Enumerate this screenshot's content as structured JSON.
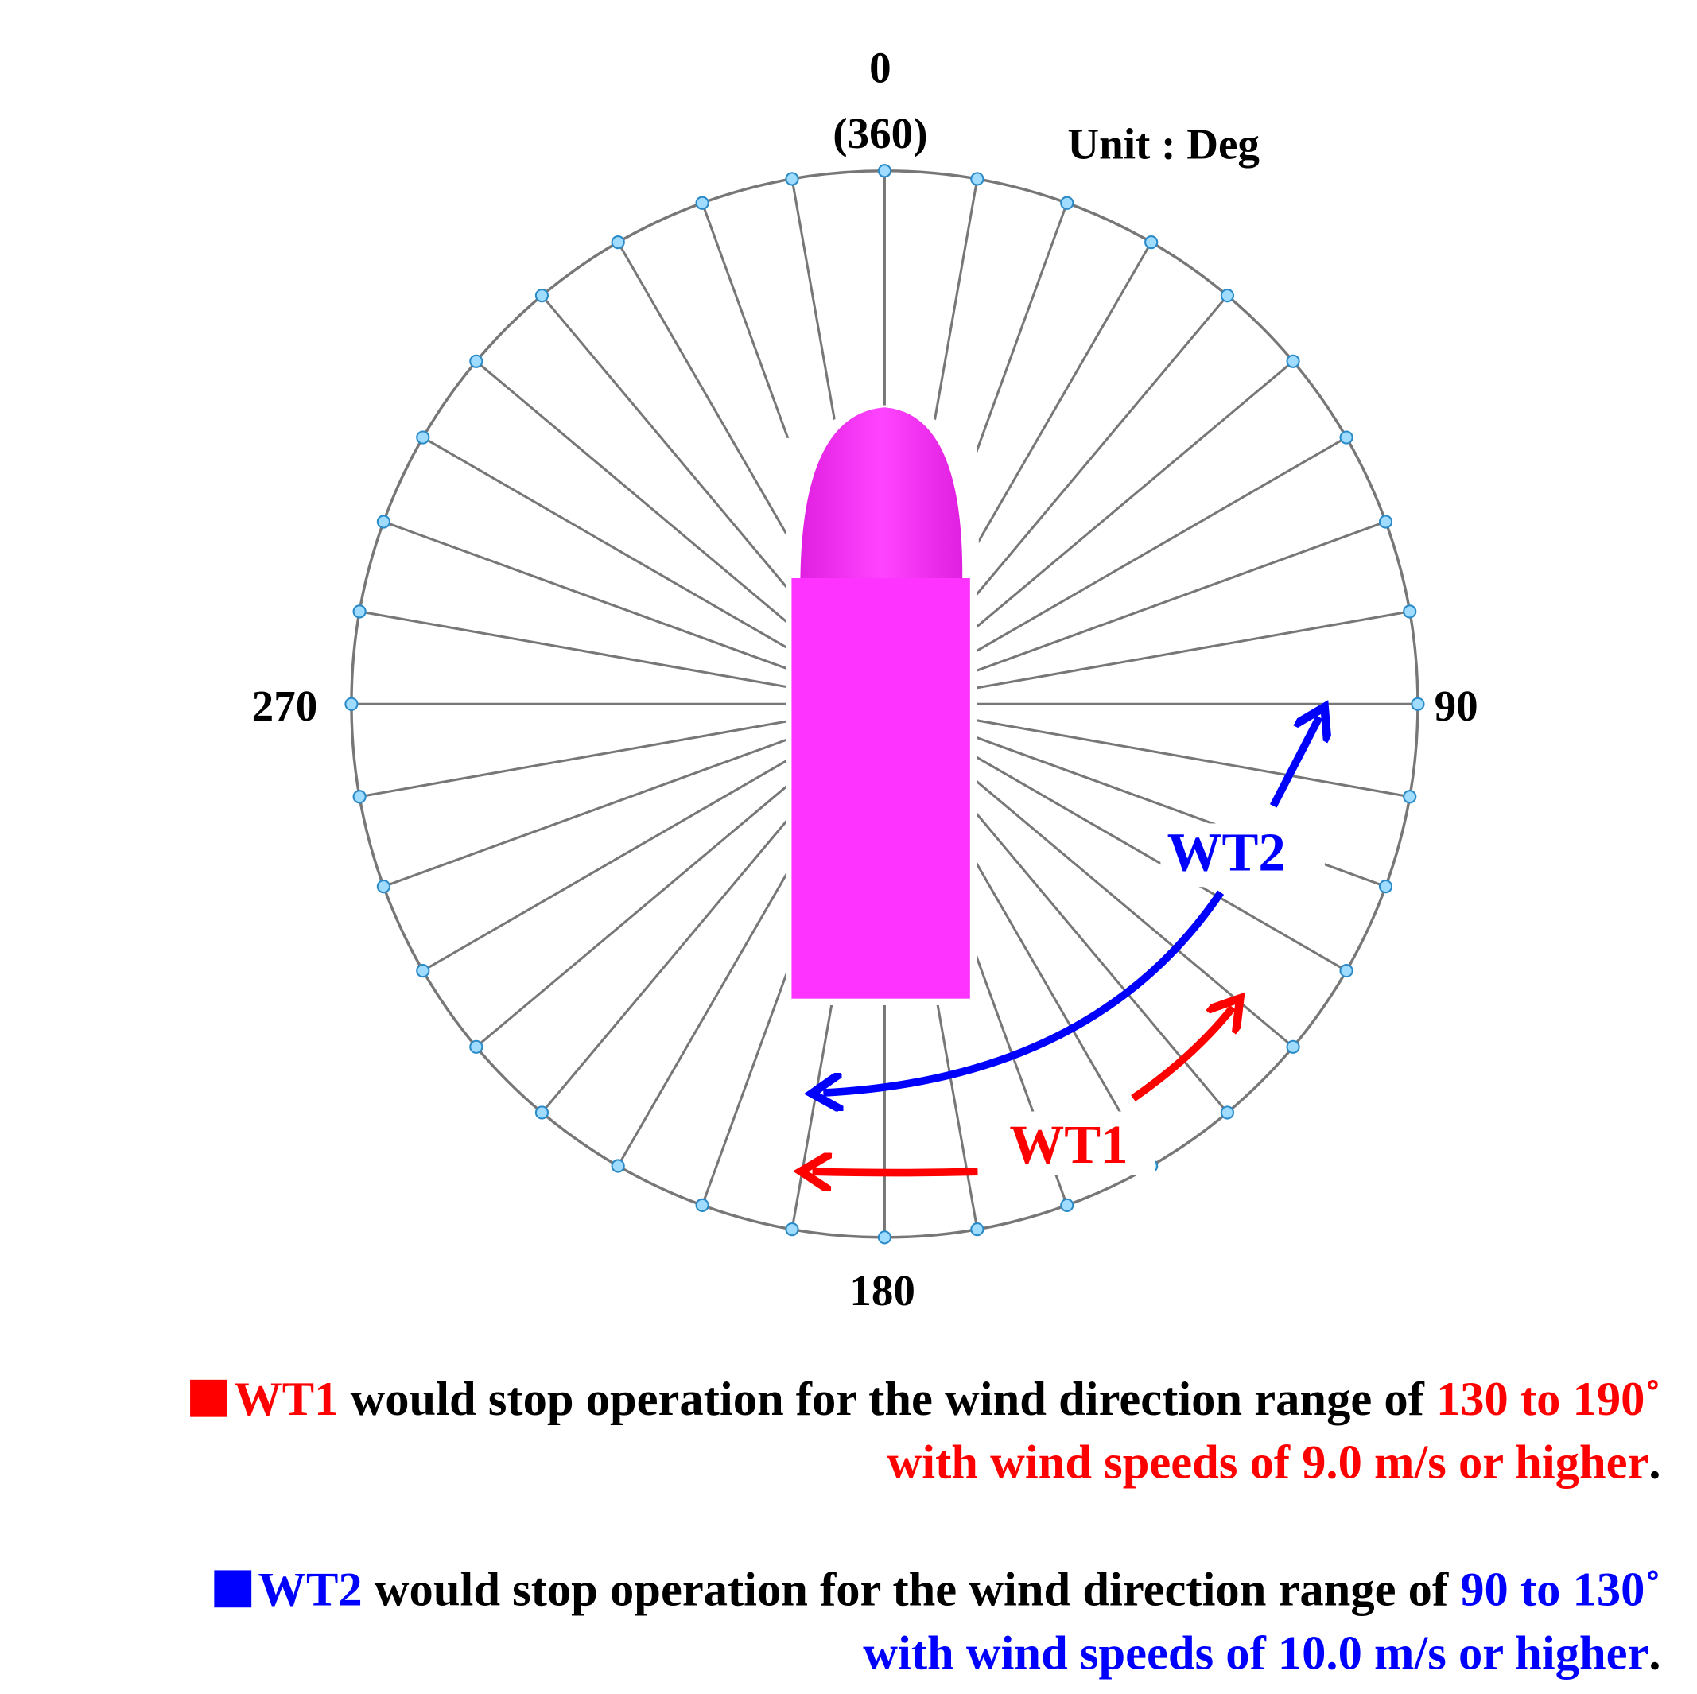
{
  "labels": {
    "north": "0",
    "north_alt": "(360)",
    "unit": "Unit : Deg",
    "west": "270",
    "east": "90",
    "south": "180"
  },
  "arrows": {
    "wt1": "WT1",
    "wt2": "WT2"
  },
  "notes": [
    {
      "lines": [
        [
          "WT1",
          " would stop operation for the wind direction range of ",
          "130 to 190˚"
        ],
        [
          "with wind speeds of 9.0 m/s or higher",
          "."
        ]
      ]
    },
    {
      "lines": [
        [
          "WT2",
          " would stop operation for the wind direction range of ",
          "90 to 130˚"
        ],
        [
          "with wind speeds of 10.0 m/s or higher",
          "."
        ]
      ]
    }
  ]
}
